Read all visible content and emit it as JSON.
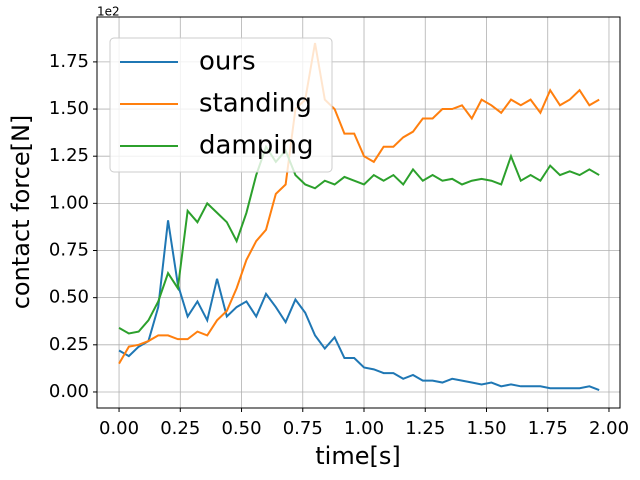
{
  "chart_data": {
    "type": "line",
    "xlabel": "time[s]",
    "ylabel": "contact force[N]",
    "y_offset_label": "1e2",
    "x": [
      0,
      0.04,
      0.08,
      0.12,
      0.16,
      0.2,
      0.24,
      0.28,
      0.32,
      0.36,
      0.4,
      0.44,
      0.48,
      0.52,
      0.56,
      0.6,
      0.64,
      0.68,
      0.72,
      0.76,
      0.8,
      0.84,
      0.88,
      0.92,
      0.96,
      1.0,
      1.04,
      1.08,
      1.12,
      1.16,
      1.2,
      1.24,
      1.28,
      1.32,
      1.36,
      1.4,
      1.44,
      1.48,
      1.52,
      1.56,
      1.6,
      1.64,
      1.68,
      1.72,
      1.76,
      1.8,
      1.84,
      1.88,
      1.92,
      1.96
    ],
    "series": [
      {
        "name": "ours",
        "color": "#1f77b4",
        "values": [
          0.22,
          0.19,
          0.24,
          0.27,
          0.45,
          0.91,
          0.57,
          0.4,
          0.48,
          0.38,
          0.6,
          0.4,
          0.45,
          0.48,
          0.4,
          0.52,
          0.45,
          0.37,
          0.49,
          0.42,
          0.3,
          0.23,
          0.29,
          0.18,
          0.18,
          0.13,
          0.12,
          0.1,
          0.1,
          0.07,
          0.09,
          0.06,
          0.06,
          0.05,
          0.07,
          0.06,
          0.05,
          0.04,
          0.05,
          0.03,
          0.04,
          0.03,
          0.03,
          0.03,
          0.02,
          0.02,
          0.02,
          0.02,
          0.03,
          0.01
        ]
      },
      {
        "name": "standing",
        "color": "#ff7f0e",
        "values": [
          0.15,
          0.24,
          0.25,
          0.27,
          0.3,
          0.3,
          0.28,
          0.28,
          0.32,
          0.3,
          0.38,
          0.43,
          0.55,
          0.7,
          0.8,
          0.86,
          1.05,
          1.1,
          1.5,
          1.55,
          1.85,
          1.55,
          1.5,
          1.37,
          1.37,
          1.25,
          1.22,
          1.3,
          1.3,
          1.35,
          1.38,
          1.45,
          1.45,
          1.5,
          1.5,
          1.52,
          1.45,
          1.55,
          1.52,
          1.48,
          1.55,
          1.52,
          1.55,
          1.48,
          1.6,
          1.52,
          1.55,
          1.6,
          1.52,
          1.55
        ]
      },
      {
        "name": "damping",
        "color": "#2ca02c",
        "values": [
          0.34,
          0.31,
          0.32,
          0.38,
          0.48,
          0.63,
          0.55,
          0.96,
          0.9,
          1.0,
          0.95,
          0.9,
          0.8,
          0.95,
          1.15,
          1.3,
          1.22,
          1.28,
          1.15,
          1.1,
          1.08,
          1.12,
          1.1,
          1.14,
          1.12,
          1.1,
          1.15,
          1.12,
          1.15,
          1.1,
          1.18,
          1.12,
          1.15,
          1.12,
          1.13,
          1.1,
          1.12,
          1.13,
          1.12,
          1.1,
          1.25,
          1.12,
          1.15,
          1.12,
          1.2,
          1.15,
          1.17,
          1.15,
          1.18,
          1.15
        ]
      }
    ],
    "xlim": [
      -0.09,
      2.045
    ],
    "ylim": [
      -0.085,
      1.988
    ],
    "xticks": [
      {
        "value": 0,
        "label": "0.00"
      },
      {
        "value": 0.25,
        "label": "0.25"
      },
      {
        "value": 0.5,
        "label": "0.50"
      },
      {
        "value": 0.75,
        "label": "0.75"
      },
      {
        "value": 1,
        "label": "1.00"
      },
      {
        "value": 1.25,
        "label": "1.25"
      },
      {
        "value": 1.5,
        "label": "1.50"
      },
      {
        "value": 1.75,
        "label": "1.75"
      },
      {
        "value": 2,
        "label": "2.00"
      }
    ],
    "yticks": [
      {
        "value": 0,
        "label": "0.00"
      },
      {
        "value": 0.25,
        "label": "0.25"
      },
      {
        "value": 0.5,
        "label": "0.50"
      },
      {
        "value": 0.75,
        "label": "0.75"
      },
      {
        "value": 1,
        "label": "1.00"
      },
      {
        "value": 1.25,
        "label": "1.25"
      },
      {
        "value": 1.5,
        "label": "1.50"
      },
      {
        "value": 1.75,
        "label": "1.75"
      }
    ],
    "grid": true,
    "legend": "upper-left"
  }
}
